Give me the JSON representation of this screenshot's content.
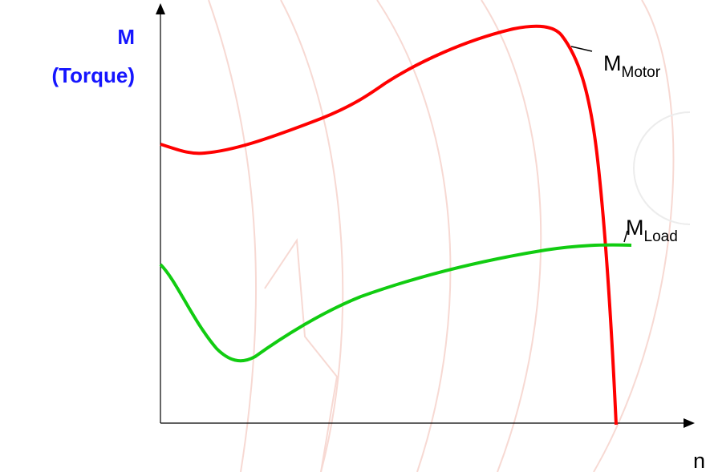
{
  "y_axis": {
    "label_line1": "M",
    "label_line2": "(Torque)"
  },
  "x_axis": {
    "label": "n"
  },
  "curves": [
    {
      "label": "M",
      "subscript": "Motor"
    },
    {
      "label": "M",
      "subscript": "Load"
    }
  ]
}
